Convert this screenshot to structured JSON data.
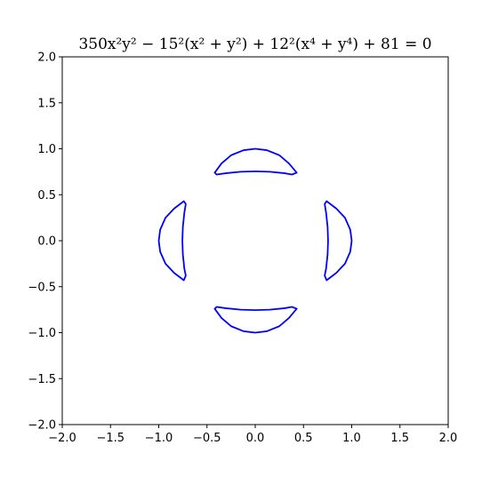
{
  "chart_data": {
    "type": "line",
    "title": "350x²y² − 15²(x² + y²) + 12²(x⁴ + y⁴) + 81 = 0",
    "xlabel": "",
    "ylabel": "",
    "xlim": [
      -2.0,
      2.0
    ],
    "ylim": [
      -2.0,
      2.0
    ],
    "x_ticks": [
      "−2.0",
      "−1.5",
      "−1.0",
      "−0.5",
      "0.0",
      "0.5",
      "1.0",
      "1.5",
      "2.0"
    ],
    "y_ticks": [
      "−2.0",
      "−1.5",
      "−1.0",
      "−0.5",
      "0.0",
      "0.5",
      "1.0",
      "1.5",
      "2.0"
    ],
    "grid": false,
    "colors": {
      "curve": "#0000ff"
    },
    "series": [
      {
        "curve": "top",
        "points": [
          [
            -0.42,
            0.74
          ],
          [
            -0.35,
            0.84
          ],
          [
            -0.25,
            0.93
          ],
          [
            -0.12,
            0.985
          ],
          [
            0.0,
            1.0
          ],
          [
            0.12,
            0.985
          ],
          [
            0.25,
            0.93
          ],
          [
            0.35,
            0.84
          ],
          [
            0.43,
            0.74
          ],
          [
            0.38,
            0.72
          ],
          [
            0.3,
            0.735
          ],
          [
            0.15,
            0.75
          ],
          [
            0.0,
            0.755
          ],
          [
            -0.15,
            0.75
          ],
          [
            -0.3,
            0.735
          ],
          [
            -0.4,
            0.72
          ],
          [
            -0.42,
            0.74
          ]
        ]
      },
      {
        "curve": "bottom",
        "points": [
          [
            -0.42,
            -0.74
          ],
          [
            -0.35,
            -0.84
          ],
          [
            -0.25,
            -0.93
          ],
          [
            -0.12,
            -0.985
          ],
          [
            0.0,
            -1.0
          ],
          [
            0.12,
            -0.985
          ],
          [
            0.25,
            -0.93
          ],
          [
            0.35,
            -0.84
          ],
          [
            0.43,
            -0.74
          ],
          [
            0.38,
            -0.72
          ],
          [
            0.3,
            -0.735
          ],
          [
            0.15,
            -0.75
          ],
          [
            0.0,
            -0.755
          ],
          [
            -0.15,
            -0.75
          ],
          [
            -0.3,
            -0.735
          ],
          [
            -0.4,
            -0.72
          ],
          [
            -0.42,
            -0.74
          ]
        ]
      },
      {
        "curve": "left",
        "points": [
          [
            -0.74,
            0.43
          ],
          [
            -0.84,
            0.35
          ],
          [
            -0.93,
            0.25
          ],
          [
            -0.985,
            0.12
          ],
          [
            -1.0,
            0.0
          ],
          [
            -0.985,
            -0.12
          ],
          [
            -0.93,
            -0.25
          ],
          [
            -0.84,
            -0.35
          ],
          [
            -0.74,
            -0.43
          ],
          [
            -0.72,
            -0.38
          ],
          [
            -0.735,
            -0.3
          ],
          [
            -0.75,
            -0.15
          ],
          [
            -0.755,
            0.0
          ],
          [
            -0.75,
            0.15
          ],
          [
            -0.735,
            0.3
          ],
          [
            -0.72,
            0.4
          ],
          [
            -0.74,
            0.43
          ]
        ]
      },
      {
        "curve": "right",
        "points": [
          [
            0.74,
            0.43
          ],
          [
            0.84,
            0.35
          ],
          [
            0.93,
            0.25
          ],
          [
            0.985,
            0.12
          ],
          [
            1.0,
            0.0
          ],
          [
            0.985,
            -0.12
          ],
          [
            0.93,
            -0.25
          ],
          [
            0.84,
            -0.35
          ],
          [
            0.74,
            -0.43
          ],
          [
            0.72,
            -0.38
          ],
          [
            0.735,
            -0.3
          ],
          [
            0.75,
            -0.15
          ],
          [
            0.755,
            0.0
          ],
          [
            0.75,
            0.15
          ],
          [
            0.735,
            0.3
          ],
          [
            0.72,
            0.4
          ],
          [
            0.74,
            0.43
          ]
        ]
      }
    ]
  }
}
